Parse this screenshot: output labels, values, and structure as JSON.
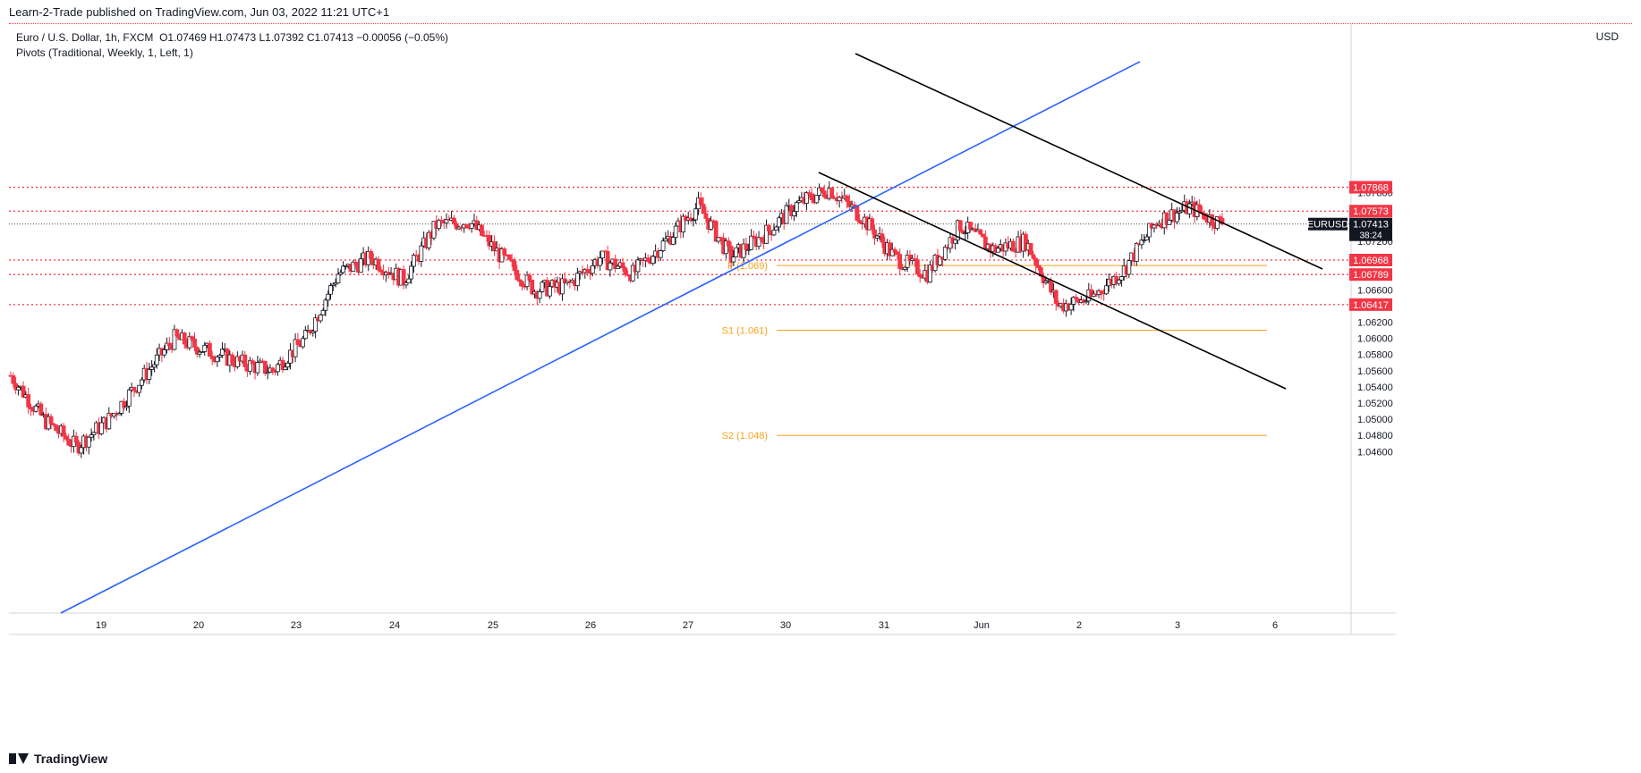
{
  "publisher_line": "Learn-2-Trade published on TradingView.com, Jun 03, 2022 11:21 UTC+1",
  "legend": {
    "symbol_line": "Euro / U.S. Dollar, 1h, FXCM",
    "ohlc": "O1.07469  H1.07473  L1.07392  C1.07413  −0.00056 (−0.05%)",
    "indicator_line": "Pivots (Traditional, Weekly, 1, Left, 1)"
  },
  "axis_unit": "USD",
  "footer_brand": "TradingView",
  "colors": {
    "up": "#131722",
    "down": "#f23645",
    "trendline_blue": "#2962ff",
    "channel": "#000000",
    "pivot": "#f7a21b",
    "hline": "#f23645"
  },
  "chart_data": {
    "type": "candlestick",
    "symbol": "EURUSD",
    "timeframe": "1h",
    "last_price": "1.07413",
    "countdown": "38:24",
    "y_ticks": [
      "1.07800",
      "1.07200",
      "1.06600",
      "1.06200",
      "1.06000",
      "1.05800",
      "1.05600",
      "1.05400",
      "1.05200",
      "1.05000",
      "1.04800",
      "1.04600"
    ],
    "x_ticks": [
      "19",
      "20",
      "23",
      "24",
      "25",
      "26",
      "27",
      "30",
      "31",
      "Jun",
      "2",
      "3",
      "6"
    ],
    "horizontal_levels": [
      {
        "price": 1.07868,
        "label": "1.07868"
      },
      {
        "price": 1.07573,
        "label": "1.07573"
      },
      {
        "price": 1.06968,
        "label": "1.06968"
      },
      {
        "price": 1.06789,
        "label": "1.06789"
      },
      {
        "price": 1.06417,
        "label": "1.06417"
      }
    ],
    "pivots": [
      {
        "label": "P (1.069)",
        "price": 1.069
      },
      {
        "label": "S1 (1.061)",
        "price": 1.061
      },
      {
        "label": "S2 (1.048)",
        "price": 1.048
      }
    ],
    "close_path": [
      {
        "day": "18",
        "close": 1.0554
      },
      {
        "day": "18",
        "close": 1.05
      },
      {
        "day": "19",
        "close": 1.0466
      },
      {
        "day": "19",
        "close": 1.05
      },
      {
        "day": "19",
        "close": 1.055
      },
      {
        "day": "20",
        "close": 1.06
      },
      {
        "day": "20",
        "close": 1.0585
      },
      {
        "day": "20",
        "close": 1.057
      },
      {
        "day": "23",
        "close": 1.056
      },
      {
        "day": "23",
        "close": 1.06
      },
      {
        "day": "23",
        "close": 1.068
      },
      {
        "day": "24",
        "close": 1.07
      },
      {
        "day": "24",
        "close": 1.0672
      },
      {
        "day": "24",
        "close": 1.074
      },
      {
        "day": "25",
        "close": 1.0745
      },
      {
        "day": "25",
        "close": 1.07
      },
      {
        "day": "25",
        "close": 1.066
      },
      {
        "day": "26",
        "close": 1.0665
      },
      {
        "day": "26",
        "close": 1.07
      },
      {
        "day": "26",
        "close": 1.068
      },
      {
        "day": "27",
        "close": 1.072
      },
      {
        "day": "27",
        "close": 1.0764
      },
      {
        "day": "27",
        "close": 1.07
      },
      {
        "day": "30",
        "close": 1.0728
      },
      {
        "day": "30",
        "close": 1.0765
      },
      {
        "day": "30",
        "close": 1.0785
      },
      {
        "day": "31",
        "close": 1.075
      },
      {
        "day": "31",
        "close": 1.07
      },
      {
        "day": "31",
        "close": 1.068
      },
      {
        "day": "Jun",
        "close": 1.074
      },
      {
        "day": "Jun",
        "close": 1.071
      },
      {
        "day": "Jun",
        "close": 1.072
      },
      {
        "day": "2",
        "close": 1.064
      },
      {
        "day": "2",
        "close": 1.065
      },
      {
        "day": "2",
        "close": 1.0685
      },
      {
        "day": "3",
        "close": 1.0745
      },
      {
        "day": "3",
        "close": 1.0762
      },
      {
        "day": "3",
        "close": 1.0741
      }
    ]
  }
}
